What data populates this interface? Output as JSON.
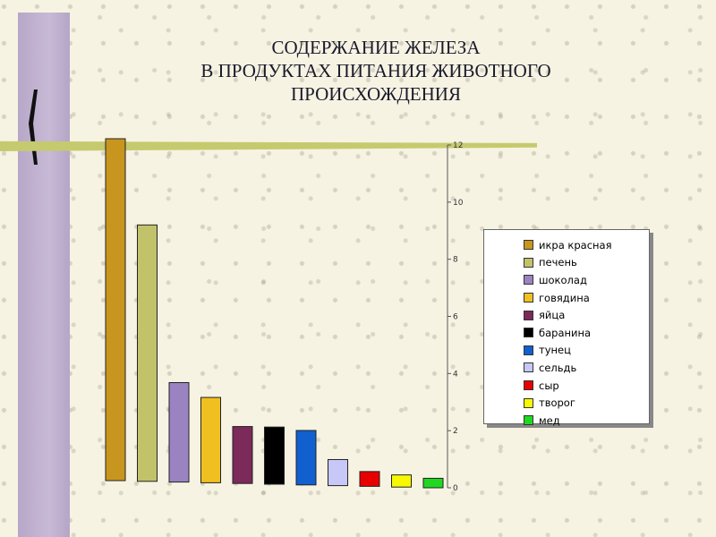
{
  "slide": {
    "title_lines": [
      "СОДЕРЖАНИЕ ЖЕЛЕЗА",
      "В ПРОДУКТАХ ПИТАНИЯ ЖИВОТНОГО",
      "ПРОИСХОЖДЕНИЯ"
    ]
  },
  "chart_data": {
    "type": "bar",
    "title": "СОДЕРЖАНИЕ ЖЕЛЕЗА В ПРОДУКТАХ ПИТАНИЯ ЖИВОТНОГО ПРОИСХОЖДЕНИЯ",
    "categories": [
      "икра красная",
      "печень",
      "шоколад",
      "говядина",
      "яйца",
      "баранина",
      "тунец",
      "сельдь",
      "сыр",
      "творог",
      "мед"
    ],
    "values": [
      12,
      9,
      3.5,
      3,
      2,
      2,
      1.9,
      0.9,
      0.5,
      0.4,
      0.3
    ],
    "colors": [
      "#c8961e",
      "#c2c26a",
      "#9b83c2",
      "#f0c020",
      "#7b2a5a",
      "#000000",
      "#1060d0",
      "#c8c8f8",
      "#e80000",
      "#f8f800",
      "#20d820"
    ],
    "ylim": [
      0,
      12
    ],
    "yticks": [
      "0",
      "2",
      "4",
      "6",
      "8",
      "10",
      "12"
    ],
    "y_axis_side": "right",
    "legend_position": "right",
    "grid": false
  }
}
